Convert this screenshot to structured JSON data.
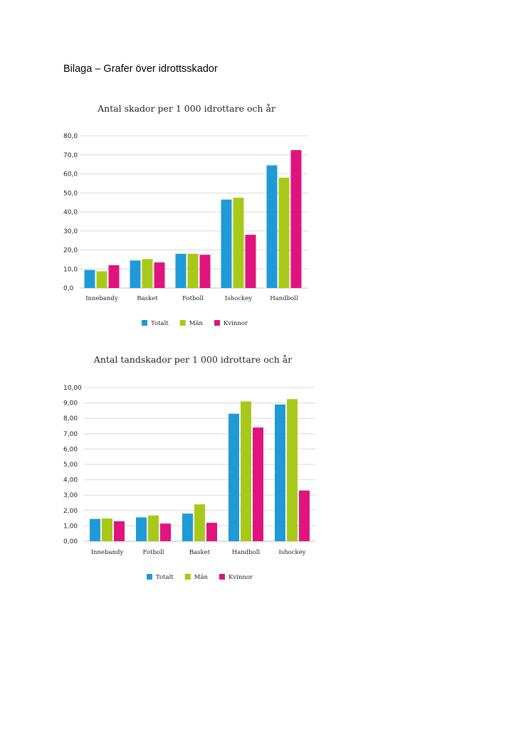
{
  "page": {
    "heading": "Bilaga – Grafer över idrottsskador"
  },
  "colors": {
    "totalt": "#1f9ad6",
    "man": "#a8c919",
    "kvinnor": "#e0137f"
  },
  "chart_data": [
    {
      "type": "bar",
      "title": "Antal skador per 1 000 idrottare och år",
      "categories": [
        "Innebandy",
        "Basket",
        "Fotboll",
        "Ishockey",
        "Handboll"
      ],
      "series": [
        {
          "name": "Totalt",
          "values": [
            9.5,
            14.5,
            18.0,
            46.5,
            64.5
          ]
        },
        {
          "name": "Män",
          "values": [
            8.8,
            15.2,
            18.0,
            47.5,
            58.0
          ]
        },
        {
          "name": "Kvinnor",
          "values": [
            12.0,
            13.5,
            17.5,
            28.0,
            72.5
          ]
        }
      ],
      "ylim": [
        0,
        80
      ],
      "yticks": [
        "0,0",
        "10,0",
        "20,0",
        "30,0",
        "40,0",
        "50,0",
        "60,0",
        "70,0",
        "80,0"
      ],
      "grid": true,
      "legend": "bottom"
    },
    {
      "type": "bar",
      "title": "Antal tandskador per 1 000 idrottare och år",
      "categories": [
        "Innebandy",
        "Fotboll",
        "Basket",
        "Handboll",
        "Ishockey"
      ],
      "series": [
        {
          "name": "Totalt",
          "values": [
            1.45,
            1.55,
            1.8,
            8.3,
            8.9
          ]
        },
        {
          "name": "Män",
          "values": [
            1.48,
            1.68,
            2.4,
            9.1,
            9.25
          ]
        },
        {
          "name": "Kvinnor",
          "values": [
            1.3,
            1.15,
            1.2,
            7.4,
            3.3
          ]
        }
      ],
      "ylim": [
        0,
        10
      ],
      "yticks": [
        "0,00",
        "1,00",
        "2,00",
        "3,00",
        "4,00",
        "5,00",
        "6,00",
        "7,00",
        "8,00",
        "9,00",
        "10,00"
      ],
      "grid": true,
      "legend": "bottom"
    }
  ]
}
